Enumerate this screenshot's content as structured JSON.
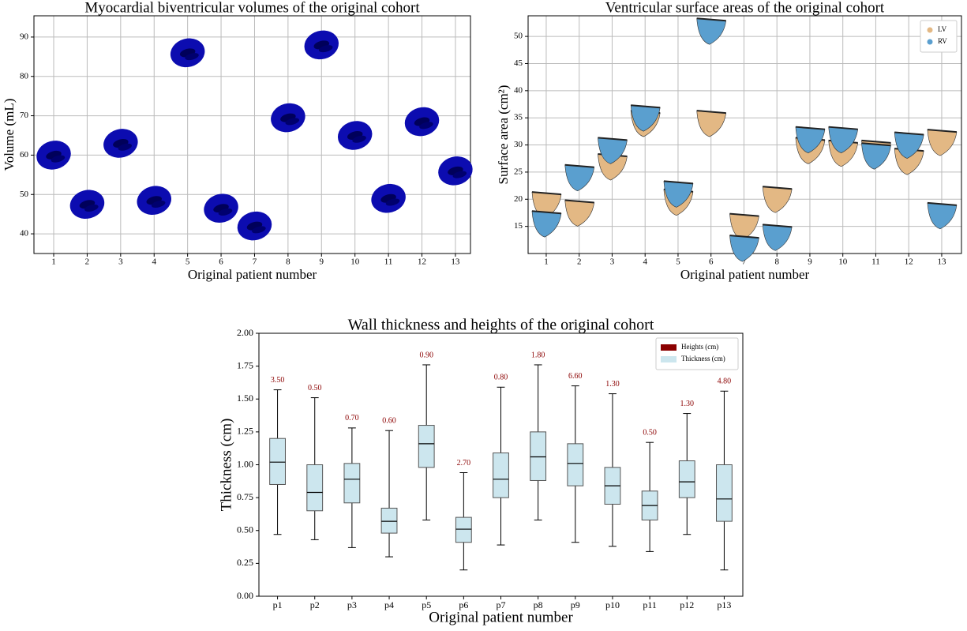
{
  "chart_data": [
    {
      "type": "scatter",
      "title": "Myocardial biventricular volumes of the original cohort",
      "x_label": "Original patient number",
      "y_label": "Volume (mL)",
      "x": [
        1,
        2,
        3,
        4,
        5,
        6,
        7,
        8,
        9,
        10,
        11,
        12,
        13
      ],
      "values": [
        60,
        47.5,
        63,
        48.5,
        86,
        46.5,
        42,
        69.5,
        88,
        65,
        49,
        68.5,
        56
      ],
      "color": "#0c0cb0",
      "xlim": [
        0.41,
        13.45
      ],
      "xticks": [
        1,
        2,
        3,
        4,
        5,
        6,
        7,
        8,
        9,
        10,
        11,
        12,
        13
      ],
      "ylim": [
        35,
        95.4
      ],
      "yticks": [
        40,
        50,
        60,
        70,
        80,
        90
      ],
      "grid": true
    },
    {
      "type": "scatter",
      "title": "Ventricular surface areas of the original cohort",
      "x_label": "Original patient number",
      "y_label": "Surface area (cm²)",
      "x": [
        1,
        2,
        3,
        4,
        5,
        6,
        7,
        8,
        9,
        10,
        11,
        12,
        13
      ],
      "series": [
        {
          "name": "LV",
          "color": "#e3b884",
          "values": [
            19,
            17.5,
            26,
            34,
            19.5,
            34,
            15,
            20,
            29,
            28.5,
            28.5,
            27,
            30.5
          ]
        },
        {
          "name": "RV",
          "color": "#5a9fcf",
          "values": [
            15.5,
            24,
            29,
            35,
            21,
            51,
            11,
            13,
            31,
            31,
            28,
            30,
            17
          ]
        }
      ],
      "xlim": [
        0.45,
        13.6
      ],
      "xticks": [
        1,
        2,
        3,
        4,
        5,
        6,
        7,
        8,
        9,
        10,
        11,
        12,
        13
      ],
      "ylim": [
        10,
        53.8
      ],
      "yticks": [
        15,
        20,
        25,
        30,
        35,
        40,
        45,
        50
      ],
      "grid": true,
      "legend": "upper-right"
    },
    {
      "type": "box",
      "title": "Wall thickness and heights of the original cohort",
      "x_label": "Original patient number",
      "y_label": "Thickness (cm)",
      "categories": [
        "p1",
        "p2",
        "p3",
        "p4",
        "p5",
        "p6",
        "p7",
        "p8",
        "p9",
        "p10",
        "p11",
        "p12",
        "p13"
      ],
      "series": [
        {
          "name": "Heights (cm)",
          "color": "#8b0000",
          "values": [
            3.5,
            0.5,
            0.7,
            0.6,
            0.9,
            2.7,
            0.8,
            1.8,
            6.6,
            1.3,
            0.5,
            1.3,
            4.8
          ],
          "value_labels": [
            "3.50",
            "0.50",
            "0.70",
            "0.60",
            "0.90",
            "2.70",
            "0.80",
            "1.80",
            "6.60",
            "1.30",
            "0.50",
            "1.30",
            "4.80"
          ]
        },
        {
          "name": "Thickness (cm)",
          "color": "#cce6ee",
          "whislo": [
            0.47,
            0.43,
            0.37,
            0.3,
            0.58,
            0.2,
            0.39,
            0.58,
            0.41,
            0.38,
            0.34,
            0.47,
            0.2
          ],
          "q1": [
            0.85,
            0.65,
            0.71,
            0.48,
            0.98,
            0.41,
            0.75,
            0.88,
            0.84,
            0.7,
            0.58,
            0.75,
            0.57
          ],
          "med": [
            1.02,
            0.79,
            0.89,
            0.57,
            1.16,
            0.51,
            0.89,
            1.06,
            1.01,
            0.84,
            0.69,
            0.87,
            0.74
          ],
          "q3": [
            1.2,
            1.0,
            1.01,
            0.67,
            1.3,
            0.6,
            1.09,
            1.25,
            1.16,
            0.98,
            0.8,
            1.03,
            1.0
          ],
          "whishi": [
            1.57,
            1.51,
            1.28,
            1.26,
            1.76,
            0.94,
            1.59,
            1.76,
            1.6,
            1.54,
            1.17,
            1.39,
            1.56
          ]
        }
      ],
      "ylim": [
        0,
        2
      ],
      "yticks": [
        {
          "value": 0,
          "label": "0.00"
        },
        0.25,
        {
          "value": 0.5,
          "label": "0.50"
        },
        0.75,
        {
          "value": 1,
          "label": "1.00"
        },
        1.25,
        {
          "value": 1.5,
          "label": "1.50"
        },
        1.75,
        {
          "value": 2,
          "label": "2.00"
        }
      ],
      "grid": false,
      "legend": "upper-right"
    }
  ]
}
